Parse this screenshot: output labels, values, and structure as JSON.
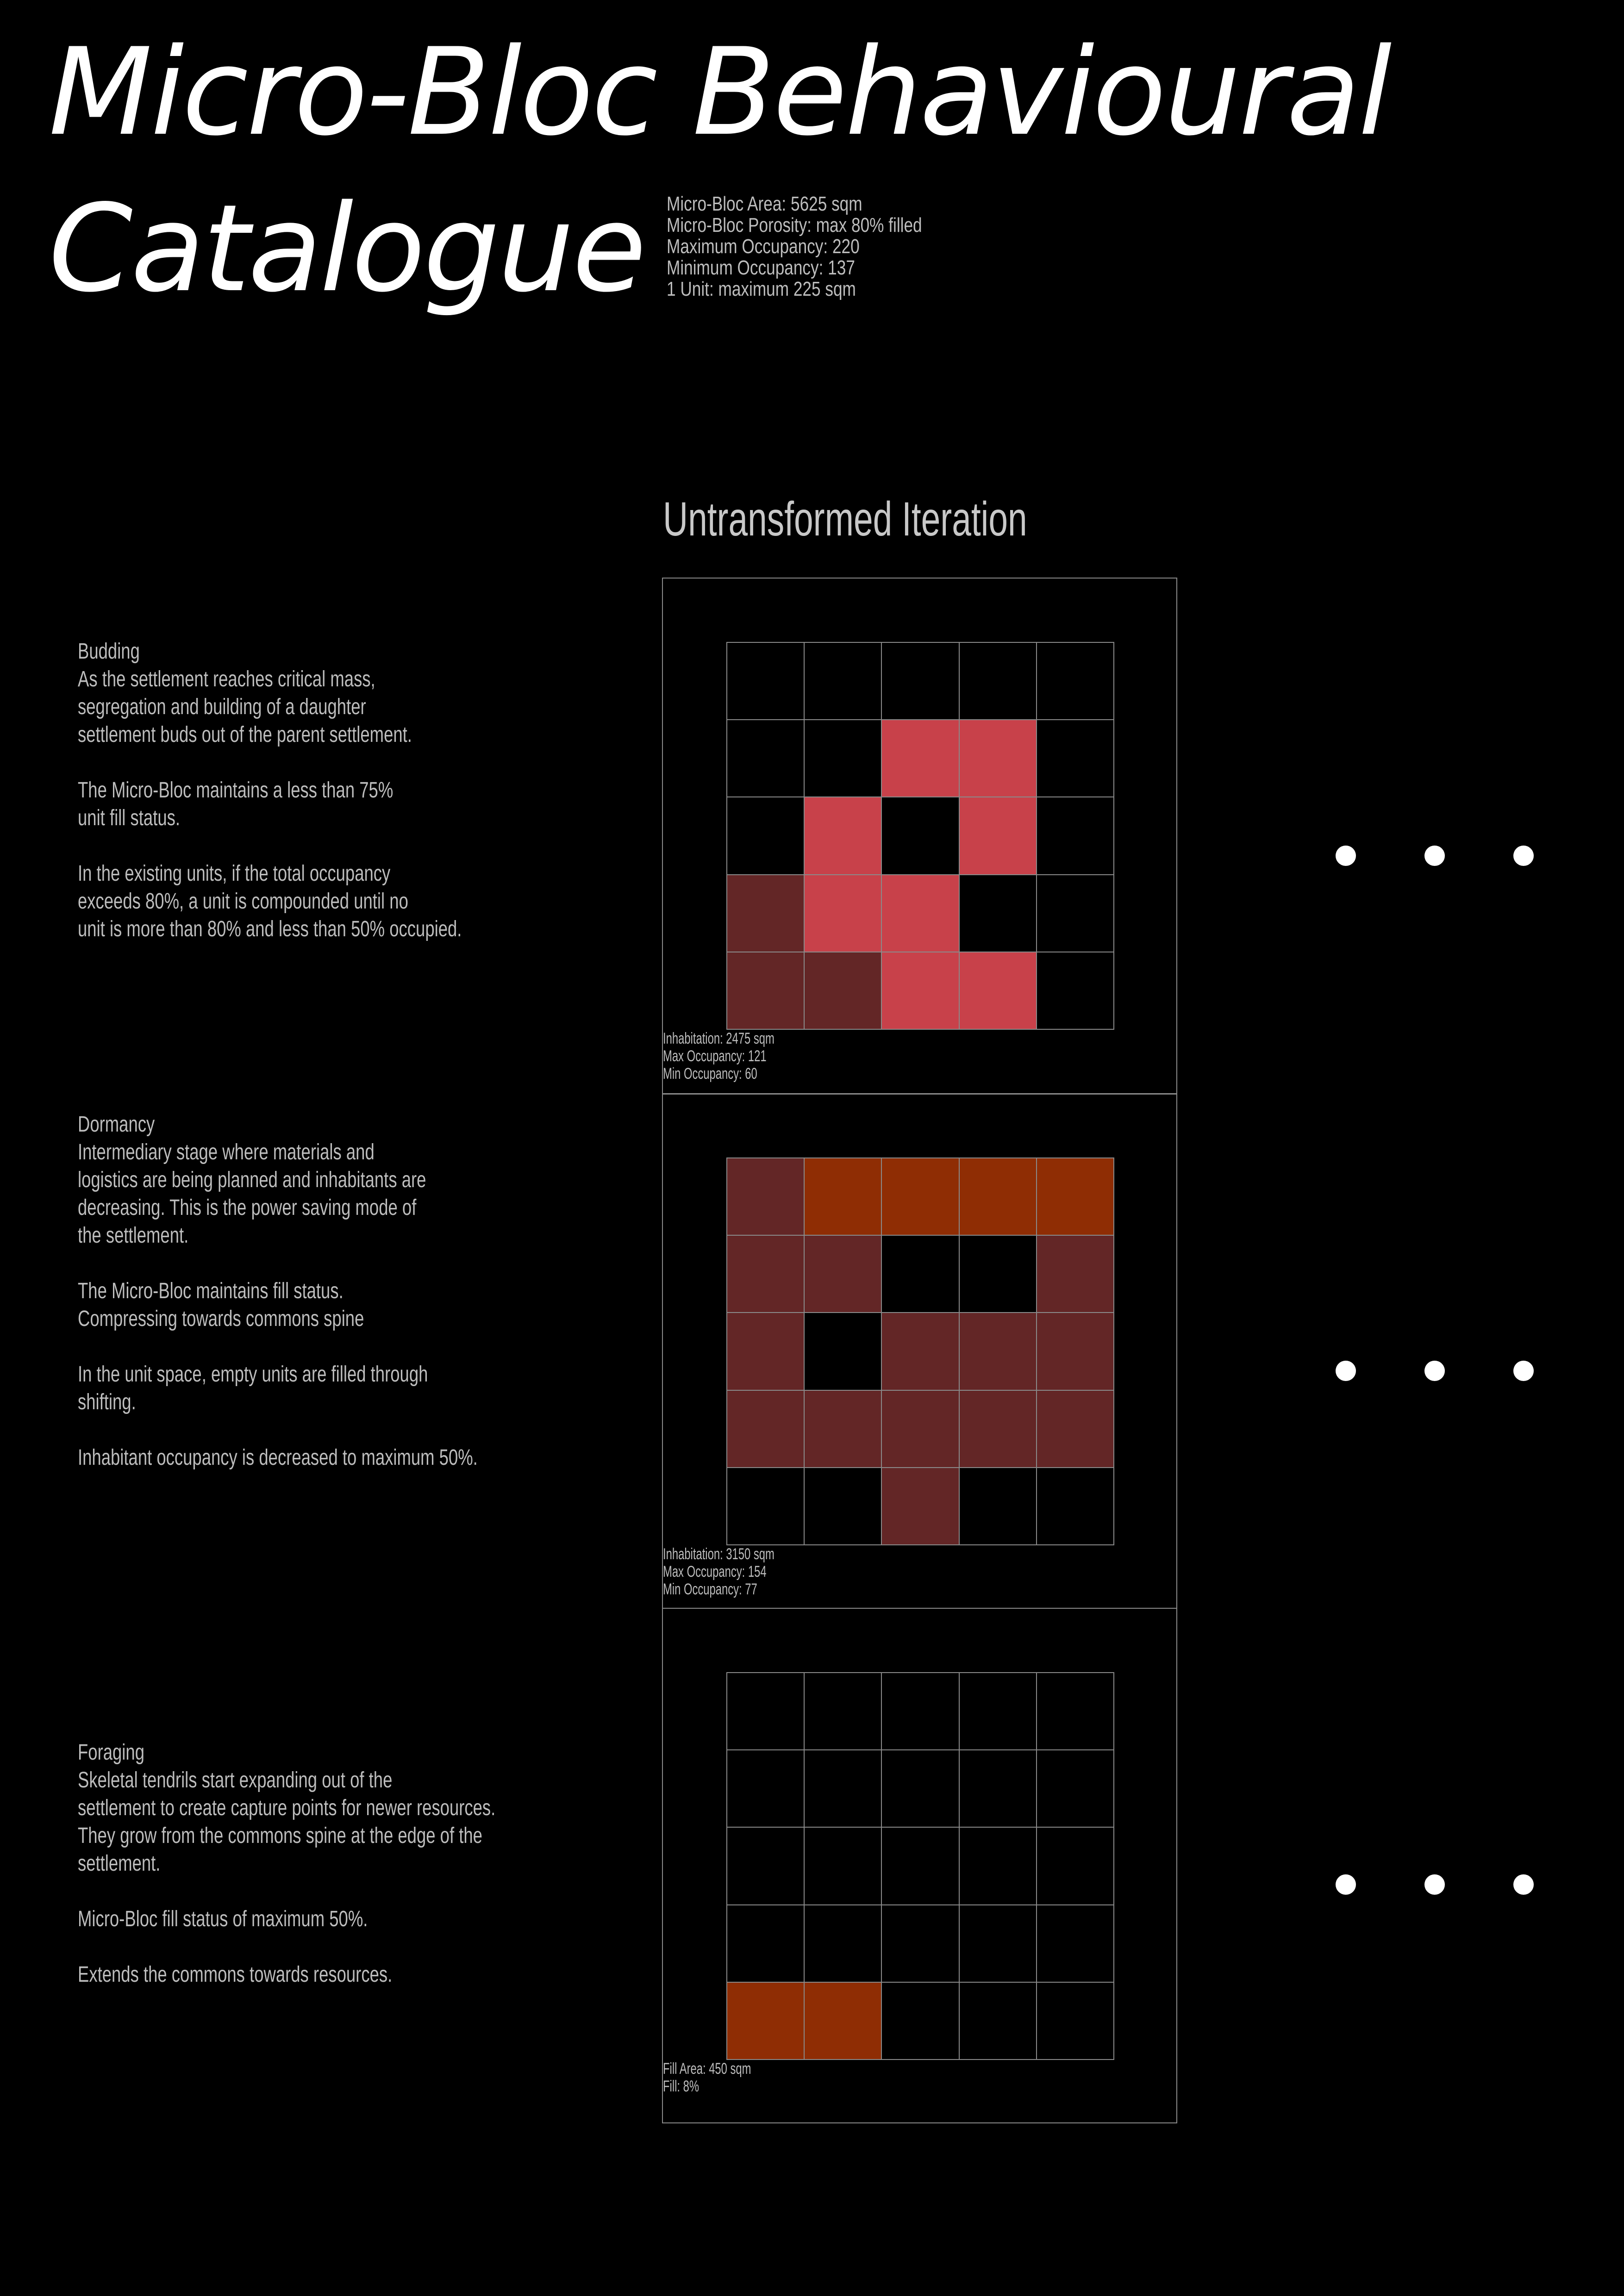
{
  "title": {
    "line1": "Micro-Bloc Behavioural",
    "line2": "Catalogue"
  },
  "specs": [
    "Micro-Bloc Area: 5625 sqm",
    "Micro-Bloc Porosity: max 80% filled",
    "Maximum Occupancy: 220",
    "Minimum Occupancy: 137",
    "1 Unit: maximum 225 sqm"
  ],
  "iteration_heading": "Untransformed Iteration",
  "colors": {
    "background": "#000000",
    "empty": "#000000",
    "red": "#c8414a",
    "maroon": "#632626",
    "orange": "#8f2d04",
    "grid_line": "#8a8a8a"
  },
  "stages": [
    {
      "name": "Budding",
      "paragraphs": [
        "As the settlement reaches critical mass,\nsegregation and building of a daughter\nsettlement buds out of the parent settlement.",
        "The Micro-Bloc maintains a less than 75%\nunit fill status.",
        "In the existing units, if the total occupancy\nexceeds 80%, a unit is compounded until no\nunit is more than 80% and less than 50% occupied."
      ],
      "stats": [
        "Inhabitation: 2475 sqm",
        "Max Occupancy: 121",
        "Min Occupancy: 60"
      ],
      "grid": [
        [
          "empty",
          "empty",
          "empty",
          "empty",
          "empty"
        ],
        [
          "empty",
          "empty",
          "red",
          "red",
          "empty"
        ],
        [
          "empty",
          "red",
          "empty",
          "red",
          "empty"
        ],
        [
          "maroon",
          "red",
          "red",
          "empty",
          "empty"
        ],
        [
          "maroon",
          "maroon",
          "red",
          "red",
          "empty"
        ]
      ]
    },
    {
      "name": "Dormancy",
      "paragraphs": [
        "Intermediary stage where materials and\nlogistics are being planned and inhabitants are\ndecreasing. This is the power saving mode of\nthe settlement.",
        "The Micro-Bloc maintains fill status.\nCompressing towards commons spine",
        "In the unit space, empty units are filled through\nshifting.",
        "Inhabitant occupancy is decreased to maximum 50%."
      ],
      "stats": [
        "Inhabitation: 3150 sqm",
        "Max Occupancy: 154",
        "Min Occupancy: 77"
      ],
      "grid": [
        [
          "maroon",
          "orange",
          "orange",
          "orange",
          "orange"
        ],
        [
          "maroon",
          "maroon",
          "empty",
          "empty",
          "maroon"
        ],
        [
          "maroon",
          "empty",
          "maroon",
          "maroon",
          "maroon"
        ],
        [
          "maroon",
          "maroon",
          "maroon",
          "maroon",
          "maroon"
        ],
        [
          "empty",
          "empty",
          "maroon",
          "empty",
          "empty"
        ]
      ]
    },
    {
      "name": "Foraging",
      "paragraphs": [
        "Skeletal tendrils start expanding out of the\nsettlement to create capture points for newer resources.\nThey grow from the commons spine at the edge of the\nsettlement.",
        "Micro-Bloc fill status of maximum 50%.",
        "Extends the commons towards resources."
      ],
      "stats": [
        "Fill Area: 450 sqm",
        "Fill: 8%"
      ],
      "grid": [
        [
          "empty",
          "empty",
          "empty",
          "empty",
          "empty"
        ],
        [
          "empty",
          "empty",
          "empty",
          "empty",
          "empty"
        ],
        [
          "empty",
          "empty",
          "empty",
          "empty",
          "empty"
        ],
        [
          "empty",
          "empty",
          "empty",
          "empty",
          "empty"
        ],
        [
          "orange",
          "orange",
          "empty",
          "empty",
          "empty"
        ]
      ]
    }
  ]
}
